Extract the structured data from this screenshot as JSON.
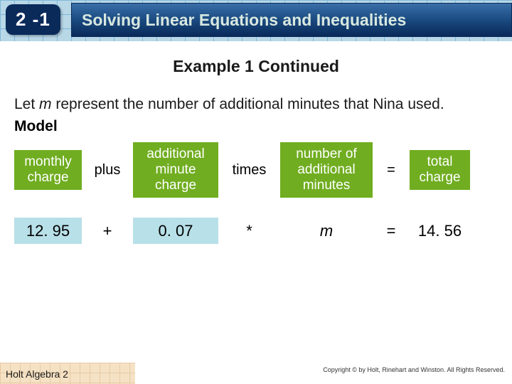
{
  "header": {
    "section_number": "2 -1",
    "title": "Solving Linear Equations and Inequalities"
  },
  "example_heading": "Example 1 Continued",
  "body": {
    "line1_pre": "Let ",
    "line1_var": "m",
    "line1_post": " represent the number of additional minutes that Nina used.",
    "model_label": "Model"
  },
  "model_row": {
    "c1": "monthly charge",
    "c2": "plus",
    "c3": "additional minute charge",
    "c4": "times",
    "c5": "number of additional minutes",
    "c6": "=",
    "c7": "total charge"
  },
  "values_row": {
    "c1": "12. 95",
    "c2": "+",
    "c3": "0. 07",
    "c4": "*",
    "c5": "m",
    "c6": "=",
    "c7": "14. 56"
  },
  "footer": {
    "book": "Holt Algebra 2",
    "copyright": "Copyright © by Holt, Rinehart and Winston. All Rights Reserved."
  },
  "colors": {
    "badge_bg": "#0a2a5a",
    "titlebar_grad_top": "#3a6fa8",
    "titlebar_grad_bot": "#0a2a5a",
    "green": "#70ad20",
    "blue_box": "#b8e0e8",
    "grid_header": "#b8d8e8",
    "grid_footer": "#f0d0a0"
  }
}
